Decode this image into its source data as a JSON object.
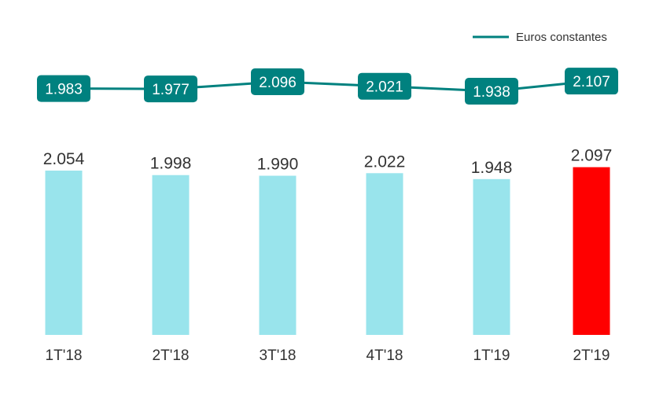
{
  "chart_data": {
    "type": "bar",
    "categories": [
      "1T'18",
      "2T'18",
      "3T'18",
      "4T'18",
      "1T'19",
      "2T'19"
    ],
    "bar_values": [
      2054,
      1998,
      1990,
      2022,
      1948,
      2097
    ],
    "bar_labels": [
      "2.054",
      "1.998",
      "1.990",
      "2.022",
      "1.948",
      "2.097"
    ],
    "line_series": {
      "name": "Euros constantes",
      "values": [
        1983,
        1977,
        2096,
        2021,
        1938,
        2107
      ],
      "labels": [
        "1.983",
        "1.977",
        "2.096",
        "2.021",
        "1.938",
        "2.107"
      ]
    },
    "legend": {
      "label": "Euros constantes",
      "position": "top-right"
    },
    "colors": {
      "bar": "#99e4ec",
      "bar_highlight": "#ff0000",
      "line": "#00817f",
      "label_box": "#00817f",
      "label_text": "#ffffff",
      "text": "#333333"
    },
    "grid": false
  }
}
